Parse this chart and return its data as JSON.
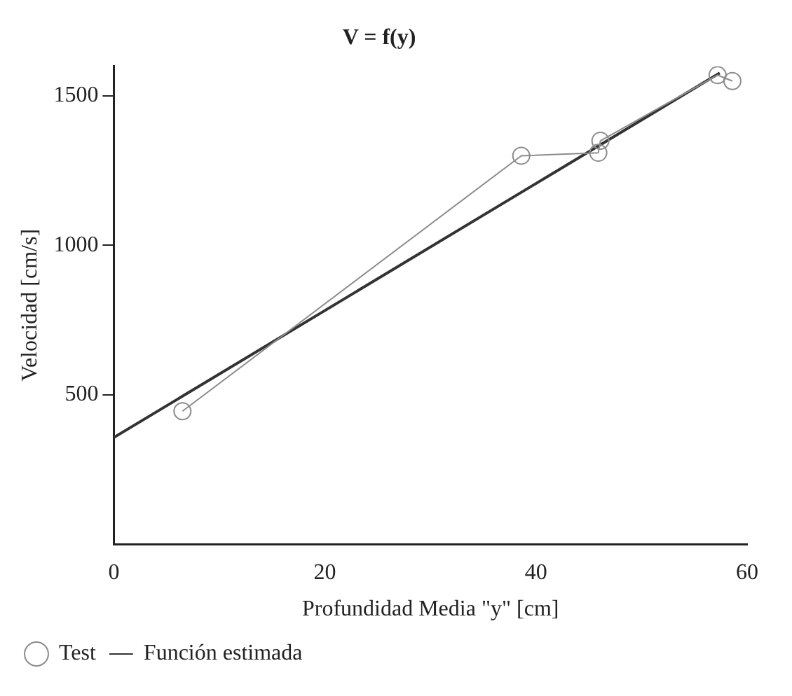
{
  "chart_data": {
    "type": "line",
    "title": "V = f(y)",
    "xlabel": "Profundidad Media \"y\" [cm]",
    "ylabel": "Velocidad [cm/s]",
    "xlim": [
      0,
      60
    ],
    "xticks": [
      0,
      20,
      40,
      60
    ],
    "ylim": [
      0,
      1600
    ],
    "yticks": [
      500,
      1000,
      1500
    ],
    "grid": false,
    "legend": "bottom left",
    "series": [
      {
        "name": "Test",
        "color": "#8c8c8c",
        "marker": "circle",
        "x": [
          6.5,
          38.6,
          45.9,
          46.1,
          57.2,
          58.6
        ],
        "values": [
          445,
          1300,
          1310,
          1350,
          1570,
          1550
        ]
      },
      {
        "name": "Función estimada",
        "color": "#333333",
        "marker": "none",
        "x": [
          0,
          57.4
        ],
        "values": [
          357,
          1577
        ]
      }
    ]
  }
}
